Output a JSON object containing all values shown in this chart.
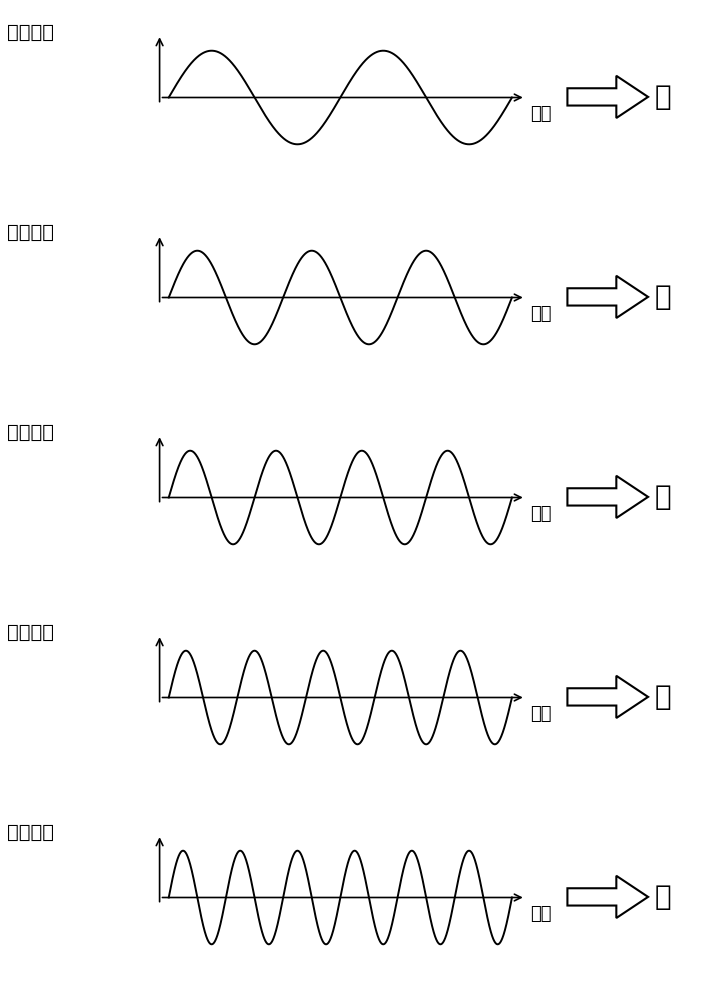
{
  "panels": [
    {
      "freq": 2,
      "label": "红"
    },
    {
      "freq": 3,
      "label": "橙"
    },
    {
      "freq": 4,
      "label": "黄"
    },
    {
      "freq": 5,
      "label": "绿"
    },
    {
      "freq": 6,
      "label": "蓝"
    }
  ],
  "y_label": "声量强度",
  "x_label": "时间",
  "amplitude": 0.72,
  "bg_color": "#ffffff",
  "line_color": "#000000",
  "font_size_label": 14,
  "font_size_color": 20
}
